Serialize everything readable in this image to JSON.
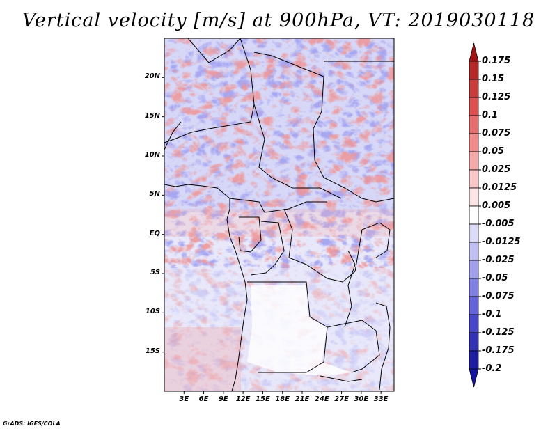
{
  "title": "Vertical velocity [m/s] at 900hPa, VT: 2019030118",
  "credit": "GrADS: IGES/COLA",
  "map": {
    "lat_labels": [
      "20N",
      "15N",
      "10N",
      "5N",
      "EQ",
      "5S",
      "10S",
      "15S"
    ],
    "lat_values": [
      20,
      15,
      10,
      5,
      0,
      -5,
      -10,
      -15
    ],
    "lon_labels": [
      "3E",
      "6E",
      "9E",
      "12E",
      "15E",
      "18E",
      "21E",
      "24E",
      "27E",
      "30E",
      "33E"
    ],
    "lon_values": [
      3,
      6,
      9,
      12,
      15,
      18,
      21,
      24,
      27,
      30,
      33
    ],
    "lat_range": [
      -20,
      25
    ],
    "lon_range": [
      0,
      35
    ]
  },
  "colorbar": {
    "labels": [
      "0.175",
      "0.15",
      "0.125",
      "0.1",
      "0.075",
      "0.05",
      "0.025",
      "0.0125",
      "0.005",
      "-0.005",
      "-0.0125",
      "-0.025",
      "-0.05",
      "-0.075",
      "-0.1",
      "-0.125",
      "-0.175",
      "-0.2"
    ],
    "colors": [
      "#a01414",
      "#b42828",
      "#c83c3c",
      "#dc5050",
      "#e66e6e",
      "#f08c8c",
      "#f5aaaa",
      "#fac8c8",
      "#fde6e6",
      "#ffffff",
      "#dcdcf8",
      "#c0c0f2",
      "#a0a0ec",
      "#8080e2",
      "#6464d8",
      "#4646c8",
      "#3232b4",
      "#1e1ea0",
      "#1414a0"
    ]
  }
}
